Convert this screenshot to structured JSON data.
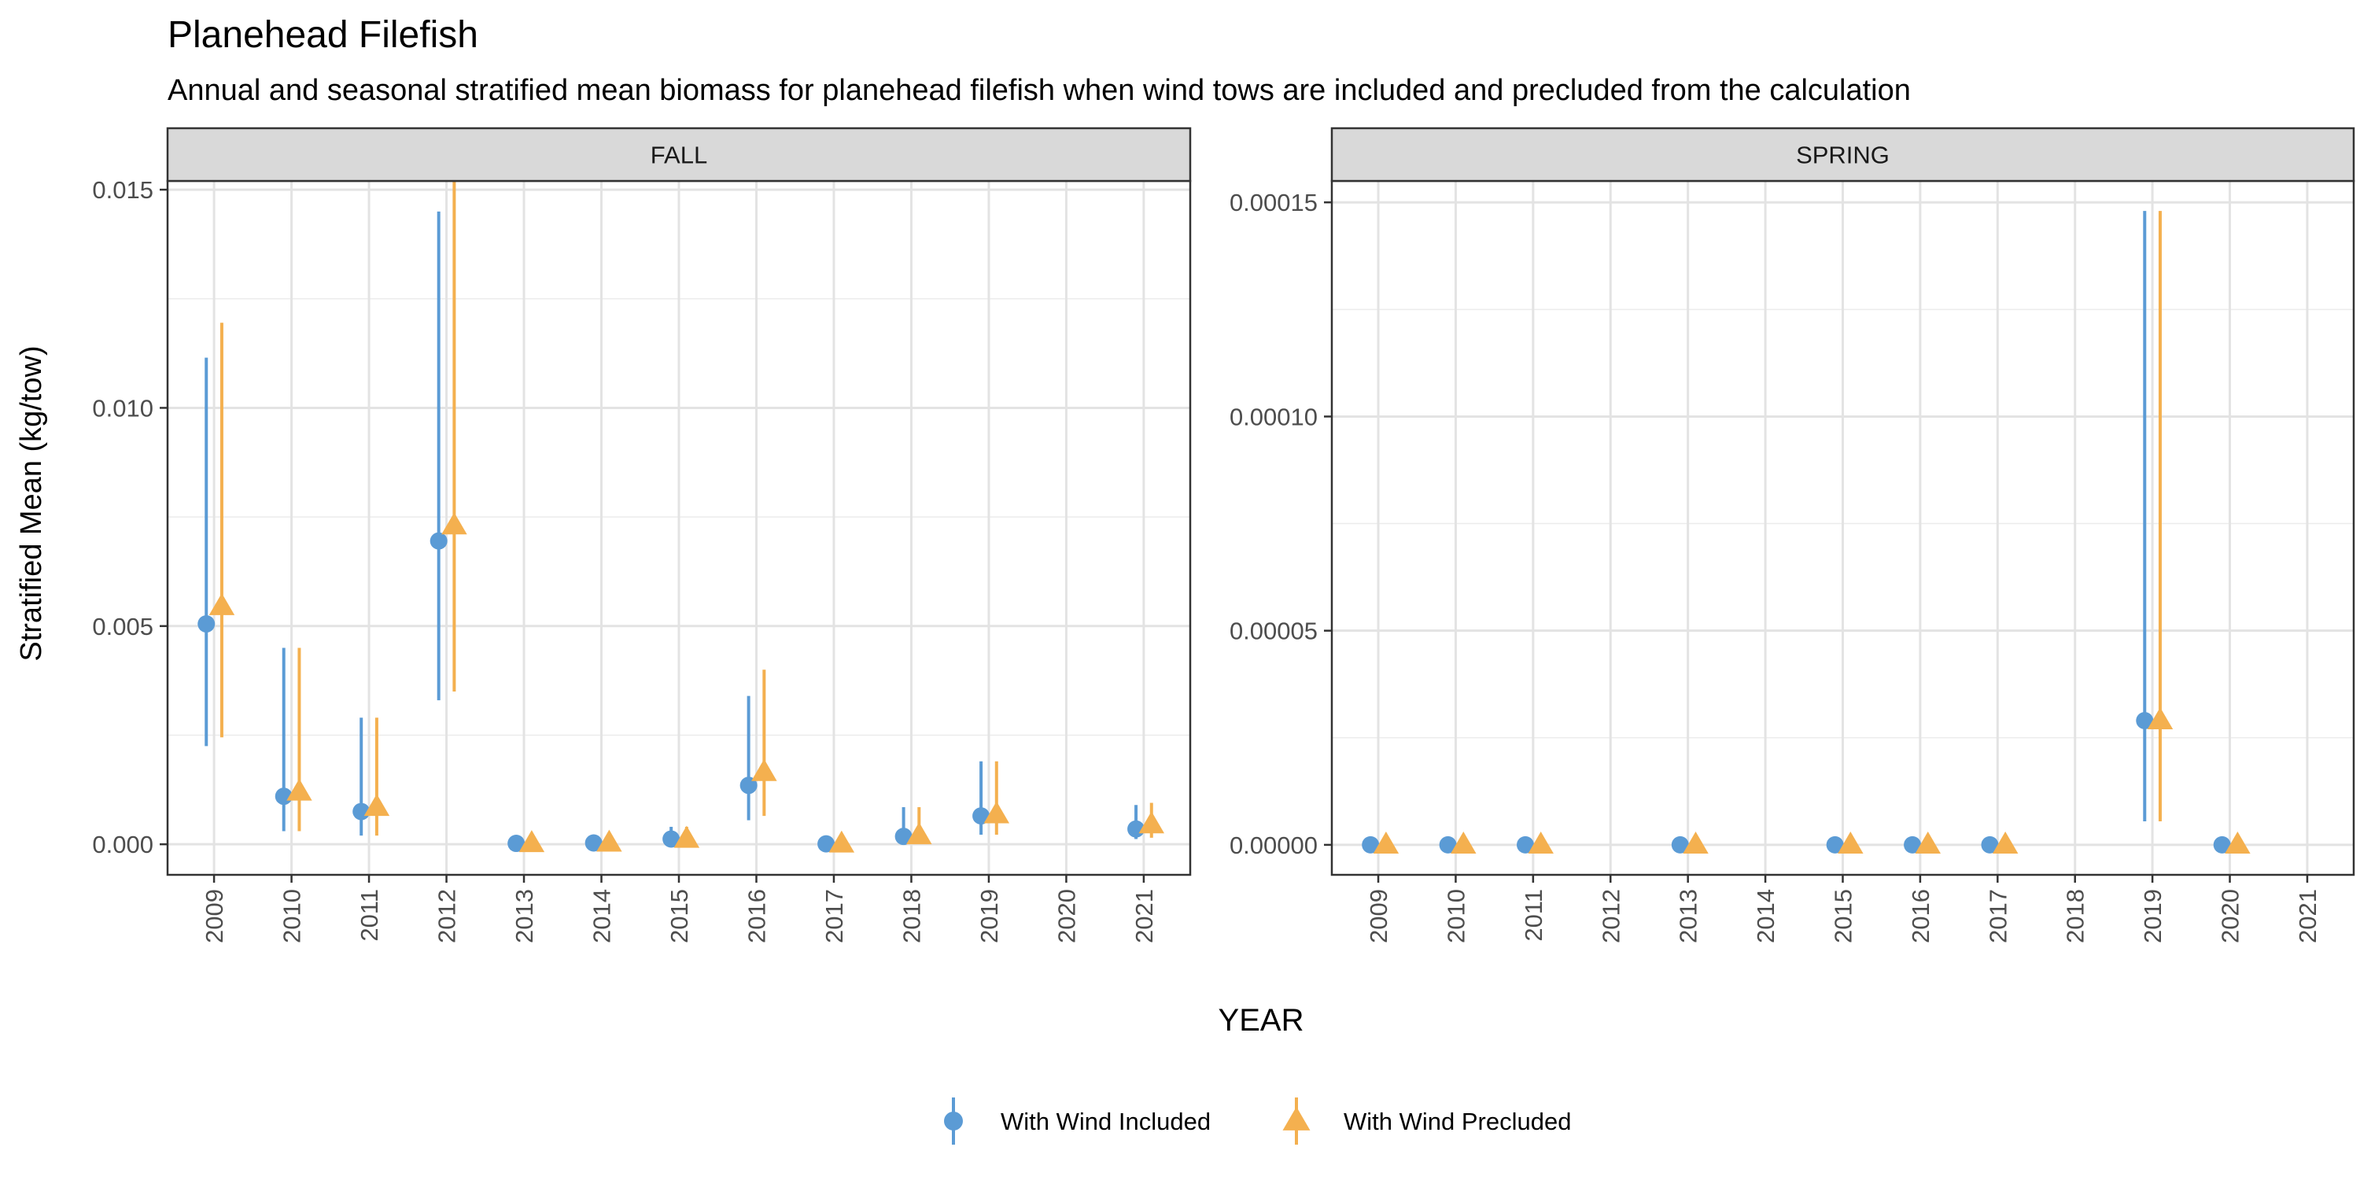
{
  "title": "Planehead Filefish",
  "subtitle": "Annual and seasonal stratified mean biomass for planehead filefish when wind tows are included and precluded from the calculation",
  "ylabel": "Stratified Mean (kg/tow)",
  "xlabel": "YEAR",
  "legend": {
    "position": "bottom",
    "items": [
      {
        "label": "With Wind Included",
        "color": "#5b9bd5",
        "shape": "circle"
      },
      {
        "label": "With Wind Precluded",
        "color": "#f4b04f",
        "shape": "triangle"
      }
    ]
  },
  "chart_data": [
    {
      "type": "scatter",
      "panel": "FALL",
      "categories": [
        "2009",
        "2010",
        "2011",
        "2012",
        "2013",
        "2014",
        "2015",
        "2016",
        "2017",
        "2018",
        "2019",
        "2020",
        "2021"
      ],
      "ylim": [
        -0.0007,
        0.0152
      ],
      "yticks": [
        0,
        0.005,
        0.01,
        0.015
      ],
      "ytick_labels": [
        "0.000",
        "0.005",
        "0.010",
        "0.015"
      ],
      "grid": true,
      "series": [
        {
          "name": "With Wind Included",
          "color": "#5b9bd5",
          "shape": "circle",
          "y": [
            0.00505,
            0.0011,
            0.00075,
            0.00695,
            2e-05,
            3e-05,
            0.00012,
            0.00135,
            1e-05,
            0.00018,
            0.00065,
            null,
            0.00035
          ],
          "low": [
            0.00225,
            0.0003,
            0.0002,
            0.0033,
            0.0,
            0.0,
            3e-05,
            0.00055,
            0.0,
            3e-05,
            0.00022,
            null,
            0.00012
          ],
          "high": [
            0.01115,
            0.0045,
            0.0029,
            0.0145,
            4e-05,
            6e-05,
            0.0004,
            0.0034,
            2e-05,
            0.00085,
            0.0019,
            null,
            0.0009
          ]
        },
        {
          "name": "With Wind Precluded",
          "color": "#f4b04f",
          "shape": "triangle",
          "y": [
            0.00545,
            0.0012,
            0.00085,
            0.0073,
            2e-05,
            3e-05,
            0.00012,
            0.00165,
            1e-05,
            0.0002,
            0.00068,
            null,
            0.00045
          ],
          "low": [
            0.00245,
            0.0003,
            0.0002,
            0.0035,
            0.0,
            0.0,
            3e-05,
            0.00065,
            0.0,
            3e-05,
            0.00022,
            null,
            0.00015
          ],
          "high": [
            0.01195,
            0.0045,
            0.0029,
            0.0152,
            4e-05,
            6e-05,
            0.0004,
            0.004,
            2e-05,
            0.00085,
            0.0019,
            null,
            0.00095
          ]
        }
      ]
    },
    {
      "type": "scatter",
      "panel": "SPRING",
      "categories": [
        "2009",
        "2010",
        "2011",
        "2012",
        "2013",
        "2014",
        "2015",
        "2016",
        "2017",
        "2018",
        "2019",
        "2020",
        "2021"
      ],
      "ylim": [
        -7e-06,
        0.000155
      ],
      "yticks": [
        0,
        5e-05,
        0.0001,
        0.00015
      ],
      "ytick_labels": [
        "0.00000",
        "0.00005",
        "0.00010",
        "0.00015"
      ],
      "grid": true,
      "series": [
        {
          "name": "With Wind Included",
          "color": "#5b9bd5",
          "shape": "circle",
          "y": [
            0,
            0,
            0,
            null,
            0,
            null,
            0,
            0,
            0,
            null,
            2.9e-05,
            0,
            null
          ],
          "low": [
            0,
            0,
            0,
            null,
            0,
            null,
            0,
            0,
            0,
            null,
            5.5e-06,
            0,
            null
          ],
          "high": [
            0,
            0,
            0,
            null,
            0,
            null,
            0,
            0,
            0,
            null,
            0.000148,
            0,
            null
          ]
        },
        {
          "name": "With Wind Precluded",
          "color": "#f4b04f",
          "shape": "triangle",
          "y": [
            0,
            0,
            0,
            null,
            0,
            null,
            0,
            0,
            0,
            null,
            2.9e-05,
            0,
            null
          ],
          "low": [
            0,
            0,
            0,
            null,
            0,
            null,
            0,
            0,
            0,
            null,
            5.5e-06,
            0,
            null
          ],
          "high": [
            0,
            0,
            0,
            null,
            0,
            null,
            0,
            0,
            0,
            null,
            0.000148,
            0,
            null
          ]
        }
      ]
    }
  ]
}
